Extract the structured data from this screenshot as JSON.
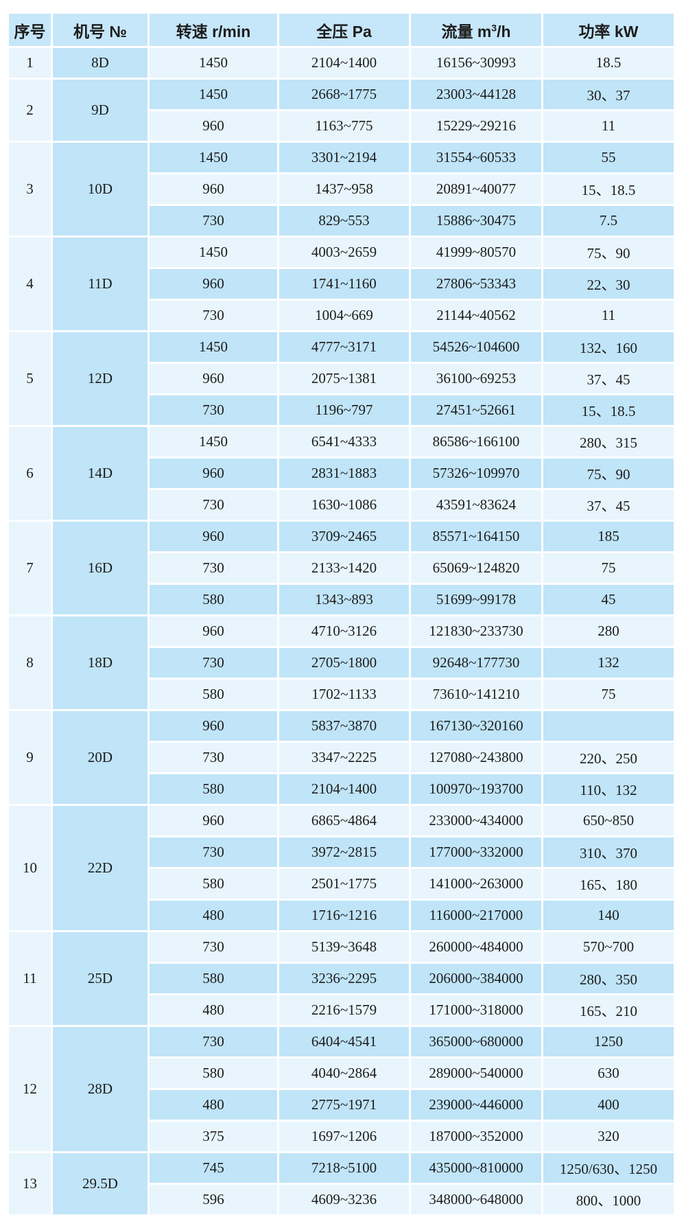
{
  "colors": {
    "header-bg": "#c6e7f9",
    "row-dark": "#c0e4f8",
    "row-light": "#e8f5fd",
    "gap": "#ffffff",
    "text": "#1c1c1c"
  },
  "table": {
    "columns": [
      {
        "text": "序号"
      },
      {
        "text": "机号 №"
      },
      {
        "text": "转速 r/min"
      },
      {
        "text": "全压 Pa"
      },
      {
        "text": "流量 m",
        "sup": "3",
        "text2": "/h"
      },
      {
        "text": "功率 kW"
      }
    ],
    "groups": [
      {
        "seq": "1",
        "model": "8D",
        "rows": [
          [
            "1450",
            "2104~1400",
            "16156~30993",
            "18.5"
          ]
        ]
      },
      {
        "seq": "2",
        "model": "9D",
        "rows": [
          [
            "1450",
            "2668~1775",
            "23003~44128",
            "30、37"
          ],
          [
            "960",
            "1163~775",
            "15229~29216",
            "11"
          ]
        ]
      },
      {
        "seq": "3",
        "model": "10D",
        "rows": [
          [
            "1450",
            "3301~2194",
            "31554~60533",
            "55"
          ],
          [
            "960",
            "1437~958",
            "20891~40077",
            "15、18.5"
          ],
          [
            "730",
            "829~553",
            "15886~30475",
            "7.5"
          ]
        ]
      },
      {
        "seq": "4",
        "model": "11D",
        "rows": [
          [
            "1450",
            "4003~2659",
            "41999~80570",
            "75、90"
          ],
          [
            "960",
            "1741~1160",
            "27806~53343",
            "22、30"
          ],
          [
            "730",
            "1004~669",
            "21144~40562",
            "11"
          ]
        ]
      },
      {
        "seq": "5",
        "model": "12D",
        "rows": [
          [
            "1450",
            "4777~3171",
            "54526~104600",
            "132、160"
          ],
          [
            "960",
            "2075~1381",
            "36100~69253",
            "37、45"
          ],
          [
            "730",
            "1196~797",
            "27451~52661",
            "15、18.5"
          ]
        ]
      },
      {
        "seq": "6",
        "model": "14D",
        "rows": [
          [
            "1450",
            "6541~4333",
            "86586~166100",
            "280、315"
          ],
          [
            "960",
            "2831~1883",
            "57326~109970",
            "75、90"
          ],
          [
            "730",
            "1630~1086",
            "43591~83624",
            "37、45"
          ]
        ]
      },
      {
        "seq": "7",
        "model": "16D",
        "rows": [
          [
            "960",
            "3709~2465",
            "85571~164150",
            "185"
          ],
          [
            "730",
            "2133~1420",
            "65069~124820",
            "75"
          ],
          [
            "580",
            "1343~893",
            "51699~99178",
            "45"
          ]
        ]
      },
      {
        "seq": "8",
        "model": "18D",
        "rows": [
          [
            "960",
            "4710~3126",
            "121830~233730",
            "280"
          ],
          [
            "730",
            "2705~1800",
            "92648~177730",
            "132"
          ],
          [
            "580",
            "1702~1133",
            "73610~141210",
            "75"
          ]
        ]
      },
      {
        "seq": "9",
        "model": "20D",
        "rows": [
          [
            "960",
            "5837~3870",
            "167130~320160",
            ""
          ],
          [
            "730",
            "3347~2225",
            "127080~243800",
            "220、250"
          ],
          [
            "580",
            "2104~1400",
            "100970~193700",
            "110、132"
          ]
        ]
      },
      {
        "seq": "10",
        "model": "22D",
        "rows": [
          [
            "960",
            "6865~4864",
            "233000~434000",
            "650~850"
          ],
          [
            "730",
            "3972~2815",
            "177000~332000",
            "310、370"
          ],
          [
            "580",
            "2501~1775",
            "141000~263000",
            "165、180"
          ],
          [
            "480",
            "1716~1216",
            "116000~217000",
            "140"
          ]
        ]
      },
      {
        "seq": "11",
        "model": "25D",
        "rows": [
          [
            "730",
            "5139~3648",
            "260000~484000",
            "570~700"
          ],
          [
            "580",
            "3236~2295",
            "206000~384000",
            "280、350"
          ],
          [
            "480",
            "2216~1579",
            "171000~318000",
            "165、210"
          ]
        ]
      },
      {
        "seq": "12",
        "model": "28D",
        "rows": [
          [
            "730",
            "6404~4541",
            "365000~680000",
            "1250"
          ],
          [
            "580",
            "4040~2864",
            "289000~540000",
            "630"
          ],
          [
            "480",
            "2775~1971",
            "239000~446000",
            "400"
          ],
          [
            "375",
            "1697~1206",
            "187000~352000",
            "320"
          ]
        ]
      },
      {
        "seq": "13",
        "model": "29.5D",
        "rows": [
          [
            "745",
            "7218~5100",
            "435000~810000",
            "1250/630、1250"
          ],
          [
            "596",
            "4609~3236",
            "348000~648000",
            "800、1000"
          ]
        ]
      }
    ]
  }
}
